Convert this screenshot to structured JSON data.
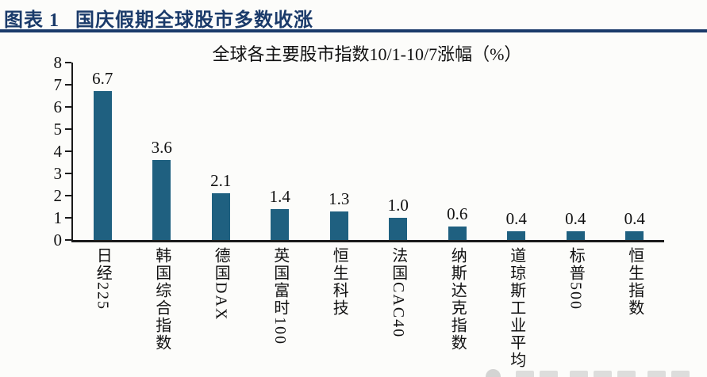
{
  "page": {
    "background": "#FCFCFA"
  },
  "header": {
    "figure_label": "图表 1",
    "figure_title": "国庆假期全球股市多数收涨",
    "accent_color": "#1A3A6A"
  },
  "chart_data": {
    "type": "bar",
    "title": "全球各主要股市指数10/1-10/7涨幅（%）",
    "categories": [
      "日经225",
      "韩国综合指数",
      "德国DAX",
      "英国富时100",
      "恒生科技",
      "法国CAC40",
      "纳斯达克指数",
      "道琼斯工业平均",
      "标普500",
      "恒生指数"
    ],
    "values": [
      6.7,
      3.6,
      2.1,
      1.4,
      1.3,
      1.0,
      0.6,
      0.4,
      0.4,
      0.4
    ],
    "value_labels": [
      "6.7",
      "3.6",
      "2.1",
      "1.4",
      "1.3",
      "1.0",
      "0.6",
      "0.4",
      "0.4",
      "0.4"
    ],
    "xlabel": "",
    "ylabel": "",
    "ylim": [
      0,
      8
    ],
    "yticks": [
      0,
      1,
      2,
      3,
      4,
      5,
      6,
      7,
      8
    ],
    "grid": false,
    "legend_position": "none",
    "bar_color": "#1F6080",
    "axis_color": "#1A1A1A",
    "category_label_orientation": "vertical"
  },
  "watermark": {
    "appearance": "cropped-gray-logo-and-text",
    "color": "#CDCDCD"
  }
}
